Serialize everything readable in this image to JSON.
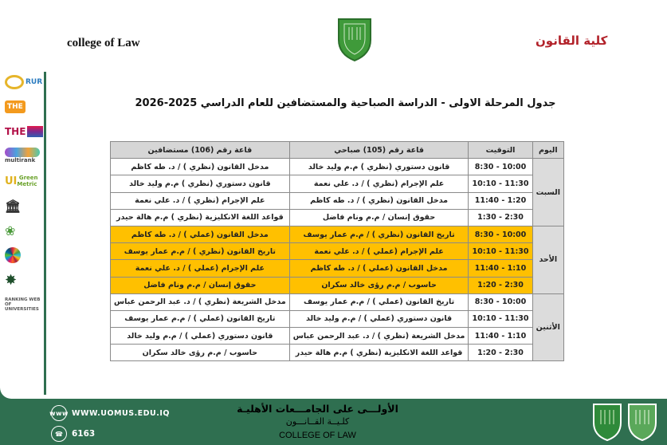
{
  "header": {
    "college_en": "college of Law",
    "college_ar": "كلية القانون",
    "title": "جدول المرحلة الاولى - الدراسة الصباحية والمستضافين للعام الدراسي 2025-2026"
  },
  "sidebar_logos": [
    "RUR",
    "THE",
    "THE IMPACT RANKINGS",
    "multirank",
    "UI GreenMetric",
    "institution-building-icon",
    "Association of Arab Universities",
    "SDGs",
    "Federation of Arab Engineers",
    "RANKING WEB OF UNIVERSITIES"
  ],
  "table": {
    "headers": {
      "day": "اليوم",
      "time": "التوقيت",
      "room105": "قاعة رقم (105) صباحي",
      "room106": "قاعة رقم (106) مستضافين"
    },
    "highlight_color": "#ffc000",
    "days": [
      {
        "day": "السبت",
        "highlight": false,
        "rows": [
          {
            "time": "8:30 - 10:00",
            "room105": "قانون دستوري (نظري ) م.م وليد خالد",
            "room106": "مدخل القانون (نظري ) / د. طه كاظم"
          },
          {
            "time": "10:10 - 11:30",
            "room105": "علم الإجرام (نظري ) / د. علي نعمة",
            "room106": "قانون دستوري (نظري ) م.م وليد خالد"
          },
          {
            "time": "11:40 - 1:20",
            "room105": "مدخل القانون (نظري ) / د. طه كاظم",
            "room106": "علم الإجرام (نظري ) / د. علي نعمة"
          },
          {
            "time": "1:30 - 2:30",
            "room105": "حقوق إنسان / م.م ونام فاضل",
            "room106": "قواعد اللغة الانكليزية (نظري ) م.م هالة حيدر"
          }
        ]
      },
      {
        "day": "الأحد",
        "highlight": true,
        "rows": [
          {
            "time": "8:30 - 10:00",
            "room105": "تاريخ القانون (نظري ) / م.م عمار يوسف",
            "room106": "مدخل القانون (عملي ) / د. طه كاظم"
          },
          {
            "time": "10:10 - 11:30",
            "room105": "علم الإجرام (عملي ) / د. علي نعمة",
            "room106": "تاريخ القانون (نظري ) / م.م عمار يوسف"
          },
          {
            "time": "11:40 - 1:10",
            "room105": "مدخل القانون (عملي ) / د. طه كاظم",
            "room106": "علم الإجرام (عملي ) / د. علي نعمة"
          },
          {
            "time": "1:20 - 2:30",
            "room105": "حاسوب / م.م رؤى خالد سكران",
            "room106": "حقوق إنسان / م.م ونام فاضل"
          }
        ]
      },
      {
        "day": "الأثنين",
        "highlight": false,
        "rows": [
          {
            "time": "8:30 - 10:00",
            "room105": "تاريخ القانون (عملي ) / م.م عمار يوسف",
            "room106": "مدخل الشريعة (نظري ) / د. عبد الرحمن عباس"
          },
          {
            "time": "10:10 - 11:30",
            "room105": "قانون دستوري (عملي ) / م.م وليد خالد",
            "room106": "تاريخ القانون (عملي ) / م.م عمار يوسف"
          },
          {
            "time": "11:40 - 1:10",
            "room105": "مدخل الشريعة (نظري ) / د. عبد الرحمن عباس",
            "room106": "قانون دستوري (عملي ) / م.م وليد خالد"
          },
          {
            "time": "1:20 - 2:30",
            "room105": "قواعد اللغة الانكليزية (نظري ) م.م هالة حيدر",
            "room106": "حاسوب / م.م رؤى خالد سكران"
          }
        ]
      }
    ]
  },
  "footer": {
    "website": "WWW.UOMUS.EDU.IQ",
    "phone": "6163",
    "slogan": "الأولـــى على الجامـــعات الأهليـة",
    "college_ar": "كلـيــة القــانـــون",
    "college_en": "COLLEGE OF LAW",
    "color": "#2f6f50"
  }
}
